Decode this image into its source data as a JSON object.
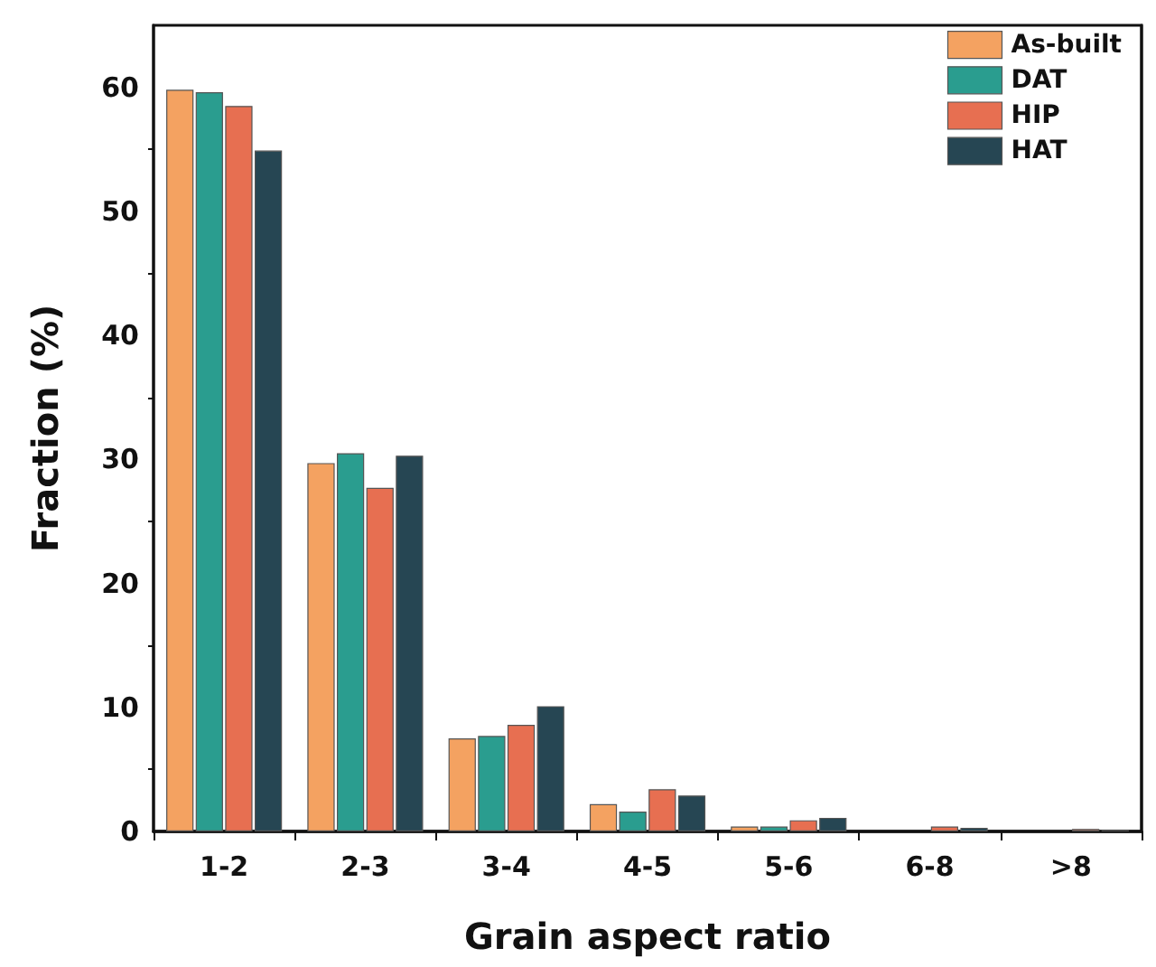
{
  "chart_data": {
    "type": "bar",
    "xlabel": "Grain aspect ratio",
    "ylabel": "Fraction (%)",
    "categories": [
      "1-2",
      "2-3",
      "3-4",
      "4-5",
      "5-6",
      "6-8",
      ">8"
    ],
    "series": [
      {
        "name": "As-built",
        "color": "#f4a261",
        "values": [
          59.8,
          29.7,
          7.5,
          2.2,
          0.4,
          0,
          0
        ]
      },
      {
        "name": "DAT",
        "color": "#2a9d8f",
        "values": [
          59.6,
          30.5,
          7.7,
          1.6,
          0.4,
          0,
          0
        ]
      },
      {
        "name": "HIP",
        "color": "#e76f51",
        "values": [
          58.5,
          27.7,
          8.6,
          3.4,
          0.9,
          0.4,
          0.2
        ]
      },
      {
        "name": "HAT",
        "color": "#264653",
        "values": [
          54.9,
          30.3,
          10.1,
          2.9,
          1.1,
          0.3,
          0.1
        ]
      }
    ],
    "ylim": [
      0,
      65
    ],
    "yticks": [
      0,
      10,
      20,
      30,
      40,
      50,
      60
    ],
    "grid": false,
    "legend": "top right"
  }
}
